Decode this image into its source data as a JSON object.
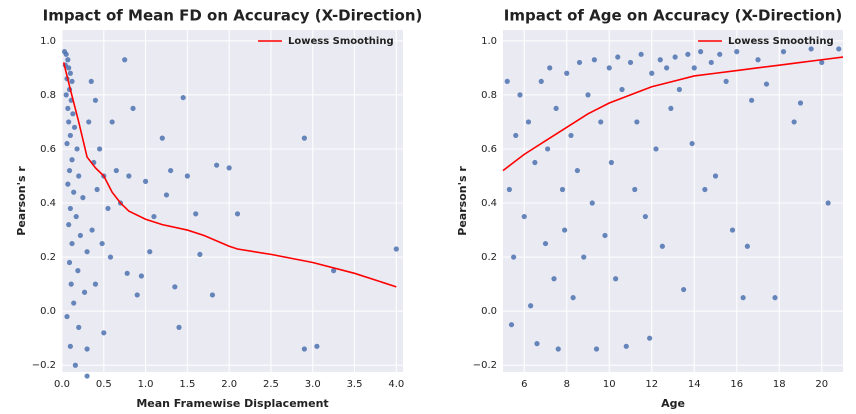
{
  "chart_data": [
    {
      "type": "scatter",
      "title": "Impact of Mean FD on Accuracy (X-Direction)",
      "x_label": "Mean Framewise Displacement",
      "y_label": "Pearson's r",
      "xlim": [
        0,
        4.08
      ],
      "ylim": [
        -0.225,
        1.04
      ],
      "xticks": [
        {
          "value": 0,
          "label": "0.0"
        },
        {
          "value": 0.5,
          "label": "0.5"
        },
        {
          "value": 1,
          "label": "1.0"
        },
        {
          "value": 1.5,
          "label": "1.5"
        },
        {
          "value": 2,
          "label": "2.0"
        },
        {
          "value": 2.5,
          "label": "2.5"
        },
        {
          "value": 3,
          "label": "3.0"
        },
        {
          "value": 3.5,
          "label": "3.5"
        },
        {
          "value": 4,
          "label": "4.0"
        }
      ],
      "yticks": [
        {
          "value": -0.2,
          "label": "−0.2"
        },
        {
          "value": 0,
          "label": "0.0"
        },
        {
          "value": 0.2,
          "label": "0.2"
        },
        {
          "value": 0.4,
          "label": "0.4"
        },
        {
          "value": 0.6,
          "label": "0.6"
        },
        {
          "value": 0.8,
          "label": "0.8"
        },
        {
          "value": 1,
          "label": "1.0"
        }
      ],
      "grid": true,
      "legend": "upper right",
      "series": [
        {
          "mode": "points",
          "color": "#4c72b0",
          "x": [
            0.03,
            0.05,
            0.07,
            0.04,
            0.08,
            0.1,
            0.06,
            0.12,
            0.09,
            0.05,
            0.11,
            0.07,
            0.13,
            0.08,
            0.15,
            0.1,
            0.06,
            0.18,
            0.12,
            0.09,
            0.2,
            0.07,
            0.14,
            0.25,
            0.1,
            0.17,
            0.08,
            0.22,
            0.12,
            0.3,
            0.09,
            0.19,
            0.11,
            0.27,
            0.14,
            0.06,
            0.2,
            0.1,
            0.16,
            0.3,
            0.35,
            0.4,
            0.32,
            0.45,
            0.38,
            0.5,
            0.42,
            0.55,
            0.36,
            0.48,
            0.6,
            0.65,
            0.7,
            0.58,
            0.75,
            0.8,
            0.85,
            0.78,
            0.9,
            1.0,
            1.05,
            1.1,
            0.95,
            1.2,
            1.25,
            1.3,
            1.35,
            1.4,
            1.45,
            1.5,
            1.6,
            1.65,
            1.8,
            1.85,
            2.0,
            2.1,
            2.9,
            2.9,
            3.05,
            3.25,
            4.0,
            0.4,
            0.5,
            0.3
          ],
          "values": [
            0.96,
            0.95,
            0.93,
            0.91,
            0.9,
            0.88,
            0.86,
            0.85,
            0.82,
            0.8,
            0.78,
            0.75,
            0.73,
            0.7,
            0.68,
            0.65,
            0.62,
            0.6,
            0.56,
            0.52,
            0.5,
            0.47,
            0.44,
            0.42,
            0.38,
            0.35,
            0.32,
            0.28,
            0.25,
            0.22,
            0.18,
            0.15,
            0.1,
            0.07,
            0.03,
            -0.02,
            -0.06,
            -0.13,
            -0.2,
            -0.24,
            0.85,
            0.78,
            0.7,
            0.6,
            0.55,
            0.5,
            0.45,
            0.38,
            0.3,
            0.25,
            0.7,
            0.52,
            0.4,
            0.2,
            0.93,
            0.5,
            0.75,
            0.14,
            0.06,
            0.48,
            0.22,
            0.35,
            0.13,
            0.64,
            0.43,
            0.52,
            0.09,
            -0.06,
            0.79,
            0.5,
            0.36,
            0.21,
            0.06,
            0.54,
            0.53,
            0.36,
            0.64,
            -0.14,
            -0.13,
            0.15,
            0.23,
            0.1,
            -0.08,
            -0.14
          ]
        },
        {
          "mode": "line",
          "name": "Lowess Smoothing",
          "color": "#ff0000",
          "x": [
            0.02,
            0.1,
            0.2,
            0.3,
            0.4,
            0.5,
            0.6,
            0.7,
            0.8,
            1.0,
            1.2,
            1.5,
            1.7,
            2.0,
            2.1,
            2.5,
            3.0,
            3.5,
            4.0
          ],
          "values": [
            0.92,
            0.82,
            0.7,
            0.57,
            0.53,
            0.5,
            0.44,
            0.4,
            0.37,
            0.34,
            0.32,
            0.3,
            0.28,
            0.24,
            0.23,
            0.21,
            0.18,
            0.14,
            0.09
          ]
        }
      ]
    },
    {
      "type": "scatter",
      "title": "Impact of Age on Accuracy (X-Direction)",
      "x_label": "Age",
      "y_label": "Pearson's r",
      "xlim": [
        5,
        21
      ],
      "ylim": [
        -0.225,
        1.04
      ],
      "xticks": [
        6,
        8,
        10,
        12,
        14,
        16,
        18,
        20
      ],
      "yticks": [
        {
          "value": -0.2,
          "label": "−0.2"
        },
        {
          "value": 0,
          "label": "0.0"
        },
        {
          "value": 0.2,
          "label": "0.2"
        },
        {
          "value": 0.4,
          "label": "0.4"
        },
        {
          "value": 0.6,
          "label": "0.6"
        },
        {
          "value": 0.8,
          "label": "0.8"
        },
        {
          "value": 1,
          "label": "1.0"
        }
      ],
      "grid": true,
      "legend": "upper right",
      "series": [
        {
          "mode": "points",
          "color": "#4c72b0",
          "x": [
            5.2,
            5.3,
            5.5,
            5.6,
            5.4,
            5.8,
            6.0,
            6.2,
            6.3,
            6.5,
            6.6,
            6.8,
            7.0,
            7.1,
            7.2,
            7.4,
            7.5,
            7.6,
            7.8,
            7.9,
            8.0,
            8.2,
            8.3,
            8.5,
            8.6,
            8.8,
            9.0,
            9.2,
            9.3,
            9.4,
            9.6,
            9.8,
            10.0,
            10.1,
            10.3,
            10.4,
            10.6,
            10.8,
            11.0,
            11.2,
            11.3,
            11.5,
            11.7,
            11.9,
            12.0,
            12.2,
            12.4,
            12.5,
            12.7,
            12.9,
            13.1,
            13.3,
            13.5,
            13.7,
            13.9,
            14.0,
            14.3,
            14.5,
            14.8,
            15.0,
            15.2,
            15.5,
            15.8,
            16.0,
            16.3,
            16.5,
            16.7,
            17.0,
            17.4,
            17.8,
            18.2,
            18.7,
            19.0,
            19.5,
            20.0,
            20.3,
            20.8
          ],
          "values": [
            0.85,
            0.45,
            0.2,
            0.65,
            -0.05,
            0.8,
            0.35,
            0.7,
            0.02,
            0.55,
            -0.12,
            0.85,
            0.25,
            0.6,
            0.9,
            0.12,
            0.75,
            -0.14,
            0.45,
            0.3,
            0.88,
            0.65,
            0.05,
            0.52,
            0.92,
            0.2,
            0.8,
            0.4,
            0.93,
            -0.14,
            0.7,
            0.28,
            0.9,
            0.55,
            0.12,
            0.94,
            0.82,
            -0.13,
            0.92,
            0.45,
            0.7,
            0.95,
            0.35,
            -0.1,
            0.88,
            0.6,
            0.93,
            0.24,
            0.9,
            0.75,
            0.94,
            0.82,
            0.08,
            0.95,
            0.62,
            0.9,
            0.96,
            0.45,
            0.92,
            0.5,
            0.95,
            0.85,
            0.3,
            0.96,
            0.05,
            0.24,
            0.78,
            0.93,
            0.84,
            0.05,
            0.96,
            0.7,
            0.77,
            0.97,
            0.92,
            0.4,
            0.97
          ]
        },
        {
          "mode": "line",
          "name": "Lowess Smoothing",
          "color": "#ff0000",
          "x": [
            5,
            6,
            7,
            8,
            9,
            10,
            11,
            12,
            13,
            14,
            15,
            16,
            17,
            18,
            19,
            20,
            21
          ],
          "values": [
            0.52,
            0.58,
            0.63,
            0.68,
            0.73,
            0.77,
            0.8,
            0.83,
            0.85,
            0.87,
            0.88,
            0.89,
            0.9,
            0.91,
            0.92,
            0.93,
            0.94
          ]
        }
      ]
    }
  ]
}
